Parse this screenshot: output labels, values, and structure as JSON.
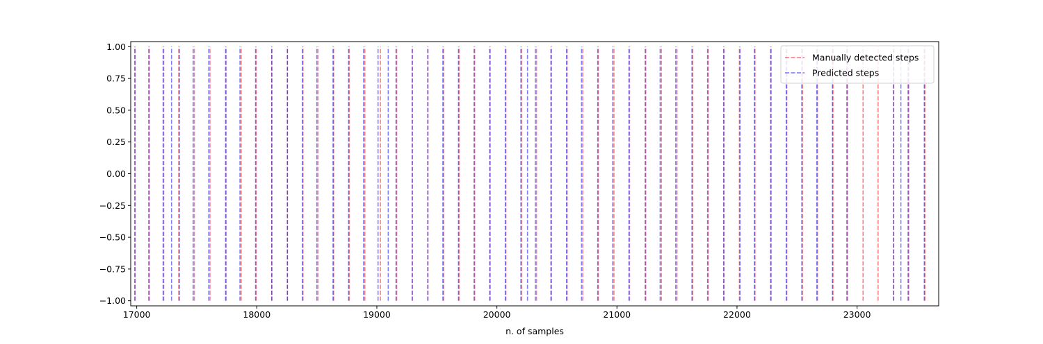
{
  "chart_data": {
    "type": "line",
    "title": "",
    "xlabel": "n. of samples",
    "ylabel": "",
    "xlim": [
      16950,
      23680
    ],
    "ylim": [
      -1.04,
      1.04
    ],
    "x_ticks": [
      17000,
      18000,
      19000,
      20000,
      21000,
      22000,
      23000
    ],
    "x_tick_labels": [
      "17000",
      "18000",
      "19000",
      "20000",
      "21000",
      "22000",
      "23000"
    ],
    "y_ticks": [
      1.0,
      0.75,
      0.5,
      0.25,
      0.0,
      -0.25,
      -0.5,
      -0.75,
      -1.0
    ],
    "y_tick_labels": [
      "1.00",
      "0.75",
      "0.50",
      "0.25",
      "0.00",
      "−0.25",
      "−0.50",
      "−0.75",
      "−1.00"
    ],
    "grid": false,
    "legend_position": "top-right",
    "series": [
      {
        "name": "Manually detected steps",
        "color": "#ff0000",
        "style": "dashed",
        "x": [
          16985,
          17105,
          17225,
          17350,
          17480,
          17610,
          17745,
          17870,
          17995,
          18125,
          18255,
          18385,
          18510,
          18640,
          18770,
          18900,
          19030,
          19165,
          19295,
          19425,
          19555,
          19685,
          19815,
          19945,
          20075,
          20205,
          20330,
          20455,
          20585,
          20715,
          20845,
          20975,
          21105,
          21240,
          21370,
          21500,
          21630,
          21760,
          21890,
          22020,
          22150,
          22285,
          22415,
          22545,
          22670,
          22800,
          22920,
          23050,
          23175,
          23305,
          23430,
          23565
        ]
      },
      {
        "name": "Predicted steps",
        "color": "#0000ff",
        "style": "dashed",
        "x": [
          16985,
          17100,
          17220,
          17290,
          17355,
          17470,
          17600,
          17740,
          17860,
          17990,
          18125,
          18255,
          18380,
          18500,
          18635,
          18765,
          18890,
          19010,
          19095,
          19160,
          19295,
          19425,
          19550,
          19680,
          19810,
          19940,
          20070,
          20200,
          20255,
          20320,
          20450,
          20580,
          20705,
          20840,
          20965,
          21100,
          21235,
          21360,
          21490,
          21625,
          21755,
          21890,
          22025,
          22145,
          22280,
          22410,
          22540,
          22665,
          22795,
          22915,
          23305,
          23365,
          23425,
          23560
        ]
      }
    ]
  }
}
